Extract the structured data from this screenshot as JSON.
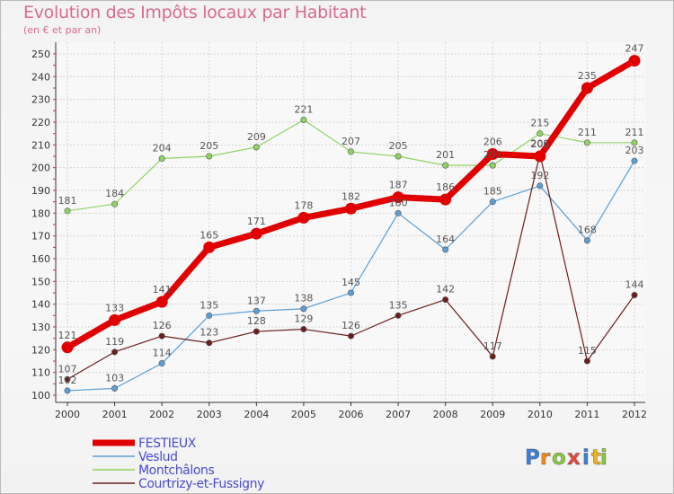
{
  "chart_data": {
    "type": "line",
    "title": "Evolution des Impôts locaux par Habitant",
    "subtitle": "(en € et par an)",
    "xlabel": "",
    "ylabel": "",
    "ylim": [
      100,
      250
    ],
    "ytick_step": 10,
    "grid": true,
    "legend_position": "bottom-left",
    "categories": [
      "2000",
      "2001",
      "2002",
      "2003",
      "2004",
      "2005",
      "2006",
      "2007",
      "2008",
      "2009",
      "2010",
      "2011",
      "2012"
    ],
    "series": [
      {
        "name": "FESTIEUX",
        "color": "#e00000",
        "values": [
          121,
          133,
          141,
          165,
          171,
          178,
          182,
          187,
          186,
          206,
          205,
          235,
          247
        ]
      },
      {
        "name": "Veslud",
        "color": "#5b9fd6",
        "values": [
          102,
          103,
          114,
          135,
          137,
          138,
          145,
          180,
          164,
          185,
          192,
          168,
          203
        ]
      },
      {
        "name": "Montchâlons",
        "color": "#8fd463",
        "values": [
          181,
          184,
          204,
          205,
          209,
          221,
          207,
          205,
          201,
          201,
          215,
          211,
          211
        ]
      },
      {
        "name": "Courtrizy-et-Fussigny",
        "color": "#6b1e1e",
        "values": [
          107,
          119,
          126,
          123,
          128,
          129,
          126,
          135,
          142,
          117,
          206,
          115,
          144
        ]
      }
    ]
  },
  "brand": {
    "letters": [
      "P",
      "r",
      "o",
      "x",
      "i",
      "t",
      "i"
    ],
    "colors": [
      "#3b7fd6",
      "#f08a1c",
      "#8cc63f",
      "#e84a3a",
      "#3b7fd6",
      "#f0b21c",
      "#8cc63f"
    ]
  }
}
